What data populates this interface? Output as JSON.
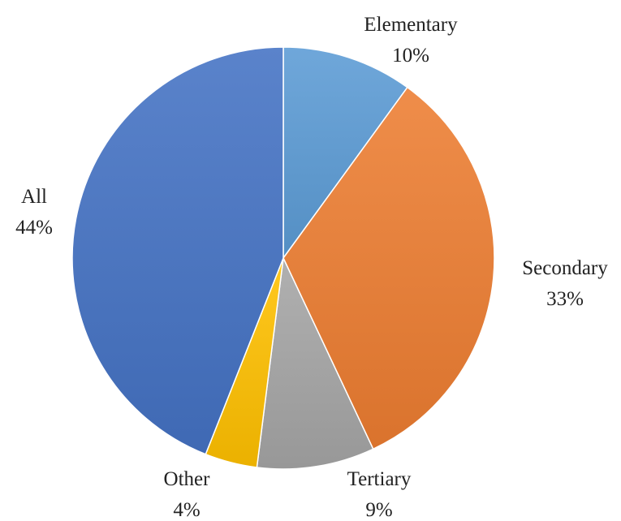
{
  "chart_data": {
    "type": "pie",
    "title": "",
    "start_angle_deg": 0,
    "direction": "clockwise",
    "slices": [
      {
        "label": "Elementary",
        "value": 10,
        "display": "10%",
        "color": "#5B9BD5"
      },
      {
        "label": "Secondary",
        "value": 33,
        "display": "33%",
        "color": "#ED7D31"
      },
      {
        "label": "Tertiary",
        "value": 9,
        "display": "9%",
        "color": "#A5A5A5"
      },
      {
        "label": "Other",
        "value": 4,
        "display": "4%",
        "color": "#FFC000"
      },
      {
        "label": "All",
        "value": 44,
        "display": "44%",
        "color": "#4472C4"
      }
    ],
    "legend": "none",
    "data_labels": "category and percentage"
  }
}
